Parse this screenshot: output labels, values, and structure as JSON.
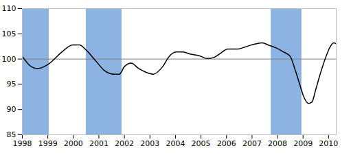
{
  "chart_data": {
    "type": "line",
    "x": [
      1998.0,
      1998.35,
      1998.6,
      1999.03,
      1999.57,
      1999.97,
      2000.24,
      2000.5,
      2000.9,
      2001.2,
      2001.6,
      2001.8,
      2002.0,
      2002.27,
      2002.54,
      2002.95,
      2003.13,
      2003.5,
      2003.75,
      2004.03,
      2004.3,
      2004.57,
      2004.97,
      2005.24,
      2005.5,
      2005.78,
      2006.05,
      2006.46,
      2006.73,
      2007.14,
      2007.4,
      2007.68,
      2007.95,
      2008.2,
      2008.5,
      2008.68,
      2008.9,
      2009.03,
      2009.22,
      2009.35,
      2009.5,
      2009.7,
      2009.9,
      2010.05,
      2010.2,
      2010.3
    ],
    "values": [
      100.5,
      98.5,
      98.1,
      99,
      101.5,
      102.8,
      102.8,
      101.8,
      99.5,
      97.8,
      97,
      97,
      98.5,
      99.2,
      98.2,
      97.2,
      97,
      98.5,
      100.5,
      101.4,
      101.4,
      101,
      100.6,
      100.1,
      100.3,
      101.2,
      102,
      102,
      102.4,
      103,
      103.2,
      102.7,
      102.2,
      101.5,
      100.5,
      98,
      94.5,
      92.5,
      91.2,
      91.5,
      94,
      97.5,
      100.5,
      102.3,
      103.2,
      103
    ],
    "color": "#000000",
    "reference_line": 100,
    "reference_color": "#808080",
    "bands": [
      [
        1998.0,
        1999.05
      ],
      [
        2000.5,
        2001.9
      ],
      [
        2007.75,
        2008.95
      ]
    ],
    "band_color": "#8db3e2",
    "xlim": [
      1998.0,
      2010.3
    ],
    "xticks": [
      1998,
      1999,
      2000,
      2001,
      2002,
      2003,
      2004,
      2005,
      2006,
      2007,
      2008,
      2009,
      2010
    ],
    "ylim": [
      85,
      110
    ],
    "yticks": [
      85,
      90,
      95,
      100,
      105,
      110
    ],
    "grid": false
  }
}
